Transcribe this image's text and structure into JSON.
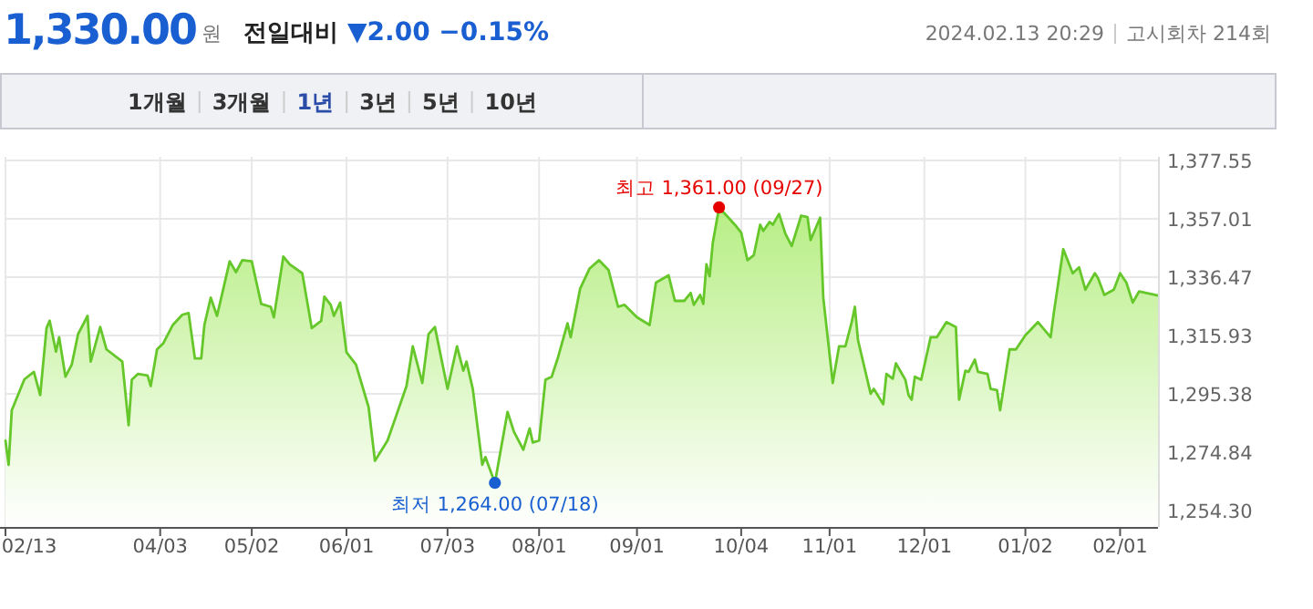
{
  "chart_data": {
    "type": "area",
    "title": "1,330.00",
    "annotations": [
      "원",
      "전일대비",
      "▼2.00  −0.15%",
      "2024.02.13 20:29",
      "고시회차 214회",
      "1개월",
      "3개월",
      "1년",
      "3년",
      "5년",
      "10년",
      {
        "text": "최저 1,264.00 (07/18)",
        "x": "2023-07-18",
        "y": 1264
      },
      {
        "text": "최고 1,361.00 (09/27)",
        "x": "2023-09-27",
        "y": 1361
      }
    ],
    "x": [
      "2023-02-13",
      "2023-02-14",
      "2023-02-15",
      "2023-02-19",
      "2023-02-22",
      "2023-02-24",
      "2023-02-26",
      "2023-02-27",
      "2023-03-01",
      "2023-03-02",
      "2023-03-04",
      "2023-03-06",
      "2023-03-08",
      "2023-03-11",
      "2023-03-12",
      "2023-03-15",
      "2023-03-17",
      "2023-03-22",
      "2023-03-24",
      "2023-03-25",
      "2023-03-27",
      "2023-03-30",
      "2023-03-31",
      "2023-04-02",
      "2023-04-04",
      "2023-04-07",
      "2023-04-10",
      "2023-04-12",
      "2023-04-14",
      "2023-04-16",
      "2023-04-17",
      "2023-04-19",
      "2023-04-21",
      "2023-04-23",
      "2023-04-25",
      "2023-04-27",
      "2023-04-29",
      "2023-05-02",
      "2023-05-05",
      "2023-05-08",
      "2023-05-09",
      "2023-05-12",
      "2023-05-14",
      "2023-05-18",
      "2023-05-21",
      "2023-05-24",
      "2023-05-25",
      "2023-05-27",
      "2023-05-28",
      "2023-05-30",
      "2023-06-01",
      "2023-06-04",
      "2023-06-08",
      "2023-06-10",
      "2023-06-14",
      "2023-06-17",
      "2023-06-20",
      "2023-06-22",
      "2023-06-25",
      "2023-06-27",
      "2023-06-29",
      "2023-07-03",
      "2023-07-06",
      "2023-07-08",
      "2023-07-09",
      "2023-07-11",
      "2023-07-14",
      "2023-07-15",
      "2023-07-18",
      "2023-07-22",
      "2023-07-24",
      "2023-07-27",
      "2023-07-29",
      "2023-07-30",
      "2023-08-01",
      "2023-08-03",
      "2023-08-05",
      "2023-08-07",
      "2023-08-10",
      "2023-08-11",
      "2023-08-14",
      "2023-08-17",
      "2023-08-20",
      "2023-08-23",
      "2023-08-26",
      "2023-08-28",
      "2023-09-01",
      "2023-09-05",
      "2023-09-07",
      "2023-09-11",
      "2023-09-13",
      "2023-09-16",
      "2023-09-18",
      "2023-09-19",
      "2023-09-21",
      "2023-09-22",
      "2023-09-23",
      "2023-09-24",
      "2023-09-25",
      "2023-09-27",
      "2023-10-02",
      "2023-10-04",
      "2023-10-06",
      "2023-10-08",
      "2023-10-10",
      "2023-10-11",
      "2023-10-13",
      "2023-10-14",
      "2023-10-16",
      "2023-10-18",
      "2023-10-20",
      "2023-10-23",
      "2023-10-25",
      "2023-10-26",
      "2023-10-29",
      "2023-10-30",
      "2023-11-02",
      "2023-11-04",
      "2023-11-06",
      "2023-11-08",
      "2023-11-09",
      "2023-11-10",
      "2023-11-14",
      "2023-11-15",
      "2023-11-18",
      "2023-11-19",
      "2023-11-21",
      "2023-11-22",
      "2023-11-25",
      "2023-11-26",
      "2023-11-27",
      "2023-11-28",
      "2023-11-30",
      "2023-12-03",
      "2023-12-05",
      "2023-12-08",
      "2023-12-11",
      "2023-12-12",
      "2023-12-14",
      "2023-12-15",
      "2023-12-17",
      "2023-12-18",
      "2023-12-21",
      "2023-12-22",
      "2023-12-24",
      "2023-12-25",
      "2023-12-28",
      "2023-12-30",
      "2024-01-02",
      "2024-01-06",
      "2024-01-10",
      "2024-01-11",
      "2024-01-14",
      "2024-01-17",
      "2024-01-19",
      "2024-01-21",
      "2024-01-24",
      "2024-01-25",
      "2024-01-27",
      "2024-01-30",
      "2024-02-01",
      "2024-02-03",
      "2024-02-05",
      "2024-02-07",
      "2024-02-13"
    ],
    "series": [
      {
        "color": "#66c72a",
        "values": [
          1278.9,
          1270.4,
          1289.6,
          1300.5,
          1303.1,
          1294.9,
          1318.5,
          1321.1,
          1310.2,
          1315.3,
          1301.4,
          1305.7,
          1316.4,
          1322.8,
          1306.7,
          1318.9,
          1311.0,
          1306.7,
          1284.3,
          1300.3,
          1302.4,
          1301.8,
          1298.1,
          1311.0,
          1313.2,
          1319.6,
          1323.2,
          1323.8,
          1307.8,
          1307.8,
          1319.6,
          1329.2,
          1322.8,
          1332.4,
          1342.0,
          1338.2,
          1342.4,
          1342.0,
          1327.0,
          1326.0,
          1322.3,
          1343.7,
          1341.0,
          1337.8,
          1318.5,
          1321.1,
          1329.6,
          1326.7,
          1322.8,
          1327.5,
          1310.0,
          1305.7,
          1290.7,
          1271.8,
          1278.9,
          1288.5,
          1298.1,
          1312.1,
          1299.2,
          1316.4,
          1318.9,
          1297.1,
          1312.1,
          1303.5,
          1306.7,
          1297.1,
          1270.4,
          1273.1,
          1264.0,
          1289.0,
          1282.1,
          1275.7,
          1283.2,
          1278.2,
          1278.9,
          1300.3,
          1301.4,
          1308.2,
          1320.2,
          1315.3,
          1332.4,
          1339.5,
          1342.4,
          1338.9,
          1326.0,
          1326.7,
          1322.3,
          1319.6,
          1334.5,
          1337.1,
          1328.1,
          1328.1,
          1330.9,
          1326.7,
          1330.2,
          1327.0,
          1341.0,
          1336.7,
          1348.5,
          1361.0,
          1354.9,
          1352.1,
          1342.4,
          1344.2,
          1354.9,
          1352.7,
          1355.9,
          1354.9,
          1358.7,
          1351.7,
          1347.4,
          1358.1,
          1357.6,
          1349.5,
          1357.4,
          1329.2,
          1299.2,
          1312.1,
          1312.1,
          1320.6,
          1326.0,
          1314.2,
          1295.4,
          1297.1,
          1291.7,
          1302.4,
          1300.7,
          1306.1,
          1300.3,
          1294.9,
          1293.3,
          1301.4,
          1300.3,
          1315.3,
          1315.3,
          1320.6,
          1318.9,
          1293.3,
          1303.5,
          1303.1,
          1307.4,
          1303.1,
          1302.4,
          1297.1,
          1296.7,
          1289.6,
          1311.0,
          1311.0,
          1316.0,
          1320.6,
          1315.3,
          1323.8,
          1346.3,
          1337.8,
          1339.9,
          1332.0,
          1337.8,
          1336.1,
          1330.2,
          1332.0,
          1337.8,
          1334.5,
          1327.5,
          1331.4,
          1330.0
        ]
      }
    ],
    "xlim": [
      "2023-02-13",
      "2024-02-13"
    ],
    "xticks": [
      {
        "value": "2023-02-13",
        "label": "02/13"
      },
      {
        "value": "2023-04-03",
        "label": "04/03"
      },
      {
        "value": "2023-05-02",
        "label": "05/02"
      },
      {
        "value": "2023-06-01",
        "label": "06/01"
      },
      {
        "value": "2023-07-03",
        "label": "07/03"
      },
      {
        "value": "2023-08-01",
        "label": "08/01"
      },
      {
        "value": "2023-09-01",
        "label": "09/01"
      },
      {
        "value": "2023-10-04",
        "label": "10/04"
      },
      {
        "value": "2023-11-01",
        "label": "11/01"
      },
      {
        "value": "2023-12-01",
        "label": "12/01"
      },
      {
        "value": "2024-01-02",
        "label": "01/02"
      },
      {
        "value": "2024-02-01",
        "label": "02/01"
      }
    ],
    "ylim": [
      1248.5,
      1378.8
    ],
    "yticks": [
      {
        "value": 1254.3,
        "label": "1,254.30"
      },
      {
        "value": 1274.84,
        "label": "1,274.84"
      },
      {
        "value": 1295.38,
        "label": "1,295.38"
      },
      {
        "value": 1315.93,
        "label": "1,315.93"
      },
      {
        "value": 1336.47,
        "label": "1,336.47"
      },
      {
        "value": 1357.01,
        "label": "1,357.01"
      },
      {
        "value": 1377.55,
        "label": "1,377.55"
      }
    ],
    "grid": true
  }
}
